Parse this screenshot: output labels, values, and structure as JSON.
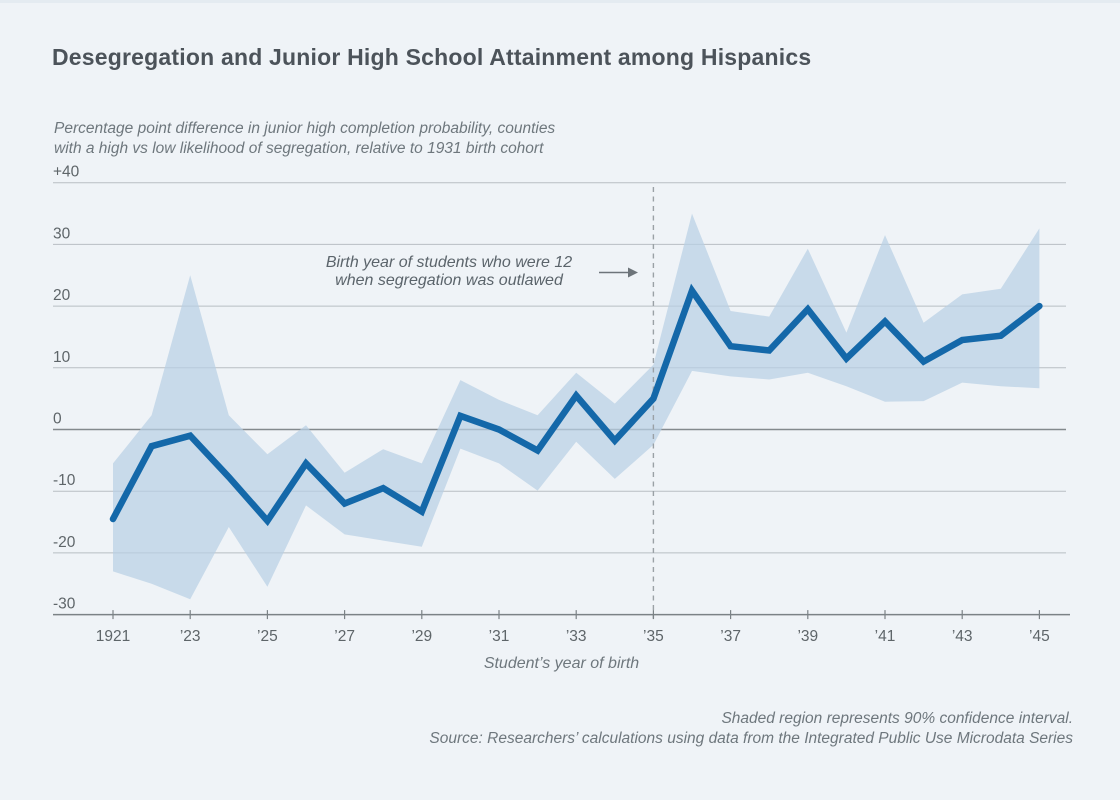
{
  "title": "Desegregation and Junior High School Attainment among Hispanics",
  "subtitle_line1": "Percentage point difference in junior high completion probability, counties",
  "subtitle_line2": "with a high vs low likelihood of segregation, relative to 1931 birth cohort",
  "annotation": {
    "line1": "Birth year of students who were 12",
    "line2": "when segregation was outlawed",
    "arrow_icon": "right-arrow",
    "target_year": 1935
  },
  "notes_line1": "Shaded region represents 90% confidence interval.",
  "notes_line2": "Source: Researchers’ calculations using data from the Integrated Public Use Microdata Series",
  "colors": {
    "background": "#eff3f7",
    "line": "#1468a9",
    "band": "#b9d0e4",
    "gridline": "#b8bec3",
    "zero_line": "#83898d",
    "axis": "#7b8286",
    "dashed_line": "#9aa1a6",
    "tick_label": "#5e6569",
    "annotation_arrow": "#6d747a"
  },
  "chart_data": {
    "type": "line",
    "title": "Desegregation and Junior High School Attainment among Hispanics",
    "xlabel": "Student’s year of birth",
    "ylabel": "Percentage point difference in junior high completion probability",
    "xlim": [
      1921,
      1945
    ],
    "ylim": [
      -30,
      40
    ],
    "grid": true,
    "reference_line_x": 1935,
    "x": [
      1921,
      1922,
      1923,
      1924,
      1925,
      1926,
      1927,
      1928,
      1929,
      1930,
      1931,
      1932,
      1933,
      1934,
      1935,
      1936,
      1937,
      1938,
      1939,
      1940,
      1941,
      1942,
      1943,
      1944,
      1945
    ],
    "series": [
      {
        "name": "Difference in junior high completion probability",
        "values": [
          -14.5,
          -2.7,
          -1,
          -7.7,
          -14.8,
          -5.5,
          -12,
          -9.5,
          -13.3,
          2.2,
          0,
          -3.4,
          5.5,
          -1.8,
          5,
          22.5,
          13.5,
          12.8,
          19.5,
          11.5,
          17.5,
          11,
          14.5,
          15.2,
          20
        ]
      },
      {
        "name": "90% CI upper",
        "values": [
          -5.5,
          2.3,
          25,
          2.3,
          -4,
          0.7,
          -7,
          -3.2,
          -5.5,
          8,
          4.8,
          2.3,
          9.2,
          4.2,
          10.5,
          35,
          19.2,
          18.3,
          29.3,
          15.7,
          31.5,
          17.3,
          21.9,
          22.8,
          32.6
        ]
      },
      {
        "name": "90% CI lower",
        "values": [
          -23,
          -25,
          -27.5,
          -15.8,
          -25.5,
          -12.3,
          -17,
          -18,
          -19,
          -3.1,
          -5.5,
          -9.9,
          -2,
          -8,
          -2.5,
          9.5,
          8.6,
          8.1,
          9.2,
          7,
          4.5,
          4.6,
          7.6,
          7,
          6.7
        ]
      }
    ],
    "y_ticks": [
      {
        "value": 40,
        "label": "+40"
      },
      {
        "value": 30,
        "label": "30"
      },
      {
        "value": 20,
        "label": "20"
      },
      {
        "value": 10,
        "label": "10"
      },
      {
        "value": 0,
        "label": "0"
      },
      {
        "value": -10,
        "label": "-10"
      },
      {
        "value": -20,
        "label": "-20"
      },
      {
        "value": -30,
        "label": "-30"
      }
    ],
    "x_ticks": [
      {
        "value": 1921,
        "label": "1921"
      },
      {
        "value": 1923,
        "label": "’23"
      },
      {
        "value": 1925,
        "label": "’25"
      },
      {
        "value": 1927,
        "label": "’27"
      },
      {
        "value": 1929,
        "label": "’29"
      },
      {
        "value": 1931,
        "label": "’31"
      },
      {
        "value": 1933,
        "label": "’33"
      },
      {
        "value": 1935,
        "label": "’35"
      },
      {
        "value": 1937,
        "label": "’37"
      },
      {
        "value": 1939,
        "label": "’39"
      },
      {
        "value": 1941,
        "label": "’41"
      },
      {
        "value": 1943,
        "label": "’43"
      },
      {
        "value": 1945,
        "label": "’45"
      }
    ],
    "legend_position": "none"
  }
}
